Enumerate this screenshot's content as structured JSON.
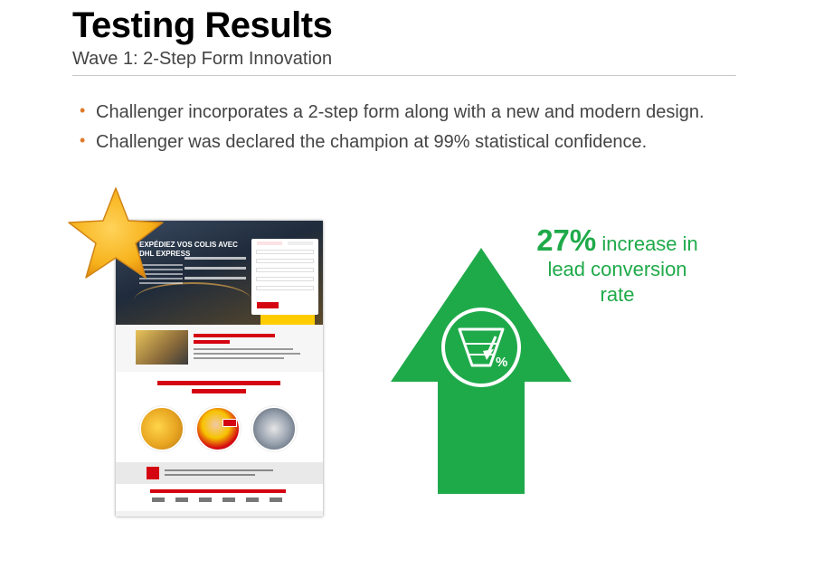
{
  "slide": {
    "title": "Testing Results",
    "subtitle": "Wave 1: 2-Step Form Innovation"
  },
  "bullets": [
    "Challenger incorporates a 2-step form along with a new and modern design.",
    "Challenger was declared the champion at 99% statistical confidence."
  ],
  "bullet_glyph": "•",
  "website_mockup": {
    "hero_heading": "EXPÉDIEZ VOS COLIS AVEC DHL EXPRESS"
  },
  "result": {
    "percent": "27%",
    "line1_rest": "increase in",
    "line2": "lead conversion",
    "line3": "rate",
    "funnel_symbol": "%",
    "color": "#1faa4a"
  },
  "icons": {
    "star": "star-icon",
    "arrow": "up-arrow-icon",
    "funnel": "funnel-icon"
  },
  "colors": {
    "accent_orange": "#e07b2a",
    "star_yellow": "#f7b21b",
    "arrow_green": "#1faa4a",
    "dhl_red": "#d40511",
    "dhl_yellow": "#ffcc00"
  }
}
